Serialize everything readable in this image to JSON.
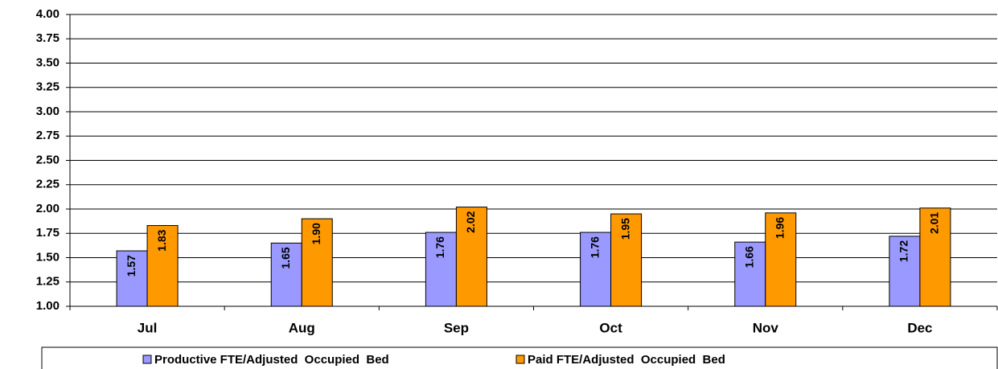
{
  "chart_data": {
    "type": "bar",
    "categories": [
      "Jul",
      "Aug",
      "Sep",
      "Oct",
      "Nov",
      "Dec"
    ],
    "series": [
      {
        "name": "Productive FTE/Adjusted  Occupied  Bed",
        "color": "#9999ff",
        "values": [
          1.57,
          1.65,
          1.76,
          1.76,
          1.66,
          1.72
        ],
        "value_labels": [
          "1.57",
          "1.65",
          "1.76",
          "1.76",
          "1.66",
          "1.72"
        ]
      },
      {
        "name": "Paid FTE/Adjusted  Occupied  Bed",
        "color": "#ff9900",
        "values": [
          1.83,
          1.9,
          2.02,
          1.95,
          1.96,
          2.01
        ],
        "value_labels": [
          "1.83",
          "1.90",
          "2.02",
          "1.95",
          "1.96",
          "2.01"
        ]
      }
    ],
    "ylim": [
      1,
      4
    ],
    "yticks": [
      {
        "value": 1,
        "label": "1.00"
      },
      {
        "value": 1.25,
        "label": "1.25"
      },
      {
        "value": 1.5,
        "label": "1.50"
      },
      {
        "value": 1.75,
        "label": "1.75"
      },
      {
        "value": 2,
        "label": "2.00"
      },
      {
        "value": 2.25,
        "label": "2.25"
      },
      {
        "value": 2.5,
        "label": "2.50"
      },
      {
        "value": 2.75,
        "label": "2.75"
      },
      {
        "value": 3,
        "label": "3.00"
      },
      {
        "value": 3.25,
        "label": "3.25"
      },
      {
        "value": 3.5,
        "label": "3.50"
      },
      {
        "value": 3.75,
        "label": "3.75"
      },
      {
        "value": 4,
        "label": "4.00"
      }
    ],
    "grid": true,
    "legend": "bottom"
  }
}
